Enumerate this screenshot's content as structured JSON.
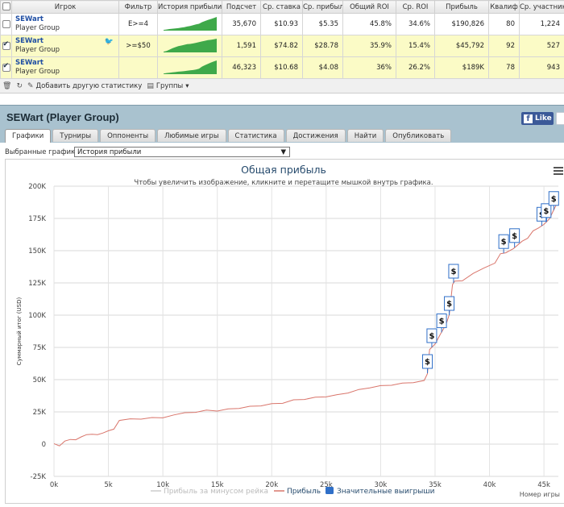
{
  "table": {
    "columns": [
      "",
      "Игрок",
      "Фильтр",
      "История прибыли",
      "Подсчет",
      "Ср. ставка",
      "Ср. прибыль",
      "Общий ROI",
      "Ср. ROI",
      "Прибыль",
      "Квалиф",
      "Ср. участники"
    ],
    "rows": [
      {
        "checked": false,
        "player": "SEWart",
        "group": "Player Group",
        "filter": "E>=4",
        "count": "35,670",
        "avg_stake": "$10.93",
        "avg_profit": "$5.35",
        "total_roi": "45.8%",
        "avg_roi": "34.6%",
        "profit": "$190,826",
        "itm": "80",
        "avg_entrants": "1,224",
        "spark": [
          0.05,
          0.08,
          0.12,
          0.14,
          0.16,
          0.18,
          0.22,
          0.25,
          0.3,
          0.34,
          0.4,
          0.45,
          0.5,
          0.62,
          0.7,
          0.78,
          0.85,
          0.92,
          1.0
        ]
      },
      {
        "checked": true,
        "player": "SEWart",
        "group": "Player Group",
        "filter": ">=$50",
        "count": "1,591",
        "avg_stake": "$74.82",
        "avg_profit": "$28.78",
        "total_roi": "35.9%",
        "avg_roi": "15.4%",
        "profit": "$45,792",
        "itm": "92",
        "avg_entrants": "527",
        "spark": [
          0.05,
          0.1,
          0.2,
          0.3,
          0.38,
          0.45,
          0.5,
          0.55,
          0.6,
          0.62,
          0.65,
          0.7,
          0.75,
          0.8,
          0.85,
          0.9,
          0.92,
          0.96,
          1.0
        ]
      },
      {
        "checked": true,
        "player": "SEWart",
        "group": "Player Group",
        "filter": "",
        "count": "46,323",
        "avg_stake": "$10.68",
        "avg_profit": "$4.08",
        "total_roi": "36%",
        "avg_roi": "26.2%",
        "profit": "$189K",
        "itm": "78",
        "avg_entrants": "943",
        "spark": [
          0.04,
          0.08,
          0.1,
          0.13,
          0.15,
          0.18,
          0.2,
          0.22,
          0.25,
          0.28,
          0.3,
          0.34,
          0.4,
          0.55,
          0.65,
          0.75,
          0.85,
          0.93,
          1.0
        ]
      }
    ]
  },
  "toolbar": {
    "add_stat": "Добавить другую статистику",
    "groups": "Группы"
  },
  "panel": {
    "title": "SEWart (Player Group)",
    "fb_like": "Like",
    "tabs": [
      "Графики",
      "Турниры",
      "Оппоненты",
      "Любимые игры",
      "Статистика",
      "Достижения",
      "Найти",
      "Опубликовать"
    ],
    "selected_charts_label": "Выбранные графики:",
    "selected_chart": "История прибыли"
  },
  "colors": {
    "line": "#d9756b",
    "ghost_line": "#cccccc",
    "marker": "#2f6fc8",
    "title": "#274b6d",
    "row_yellow": "#fbfbc6",
    "panel_bg": "#a9c2cf"
  },
  "chart_data": {
    "type": "line",
    "title": "Общая прибыль",
    "subtitle": "Чтобы увеличить изображение, кликните и перетащите мышкой внутрь графика.",
    "ylabel": "Суммарный итог (USD)",
    "xlabel": "Номер игры",
    "xlim": [
      0,
      46323
    ],
    "ylim": [
      -25000,
      200000
    ],
    "x_ticks": [
      "0k",
      "5k",
      "10k",
      "15k",
      "20k",
      "25k",
      "30k",
      "35k",
      "40k",
      "45k"
    ],
    "y_ticks": [
      "-25K",
      "0",
      "25K",
      "50K",
      "75K",
      "100K",
      "125K",
      "150K",
      "175K",
      "200K"
    ],
    "legend": [
      "Прибыль за минусом рейка",
      "Прибыль",
      "Значительные выигрыши"
    ],
    "legend_position": "bottom-center",
    "grid": true,
    "series": [
      {
        "name": "Прибыль",
        "x": [
          0,
          500,
          1000,
          1500,
          2000,
          2500,
          3000,
          3500,
          4000,
          4500,
          5000,
          5500,
          6000,
          7000,
          8000,
          9000,
          10000,
          11000,
          12000,
          13000,
          14000,
          15000,
          16000,
          17000,
          18000,
          19000,
          20000,
          21000,
          22000,
          23000,
          24000,
          25000,
          26000,
          27000,
          28000,
          29000,
          30000,
          31000,
          32000,
          33000,
          34000,
          34300,
          34500,
          35000,
          35500,
          36000,
          36300,
          36600,
          36800,
          37500,
          38500,
          39500,
          40500,
          41000,
          41500,
          42200,
          43000,
          43500,
          44000,
          44500,
          45000,
          45500,
          46000,
          46323
        ],
        "y": [
          0,
          -1000,
          2000,
          4000,
          3000,
          6000,
          7000,
          8000,
          7000,
          9000,
          10000,
          12000,
          18000,
          20000,
          19000,
          21000,
          20000,
          23000,
          24000,
          25000,
          26000,
          26000,
          27000,
          28000,
          29000,
          30000,
          31000,
          32000,
          34000,
          35000,
          36000,
          37000,
          38000,
          40000,
          42000,
          44000,
          45000,
          46000,
          47000,
          48000,
          49000,
          55000,
          73000,
          78000,
          85000,
          93000,
          100000,
          124000,
          126000,
          127000,
          132000,
          137000,
          140000,
          148000,
          148000,
          152000,
          157000,
          160000,
          165000,
          168000,
          170000,
          175000,
          183000,
          189000
        ]
      }
    ],
    "big_wins_x": [
      34300,
      34700,
      35600,
      36300,
      36700,
      41300,
      42300,
      44800,
      45200,
      45900
    ]
  }
}
